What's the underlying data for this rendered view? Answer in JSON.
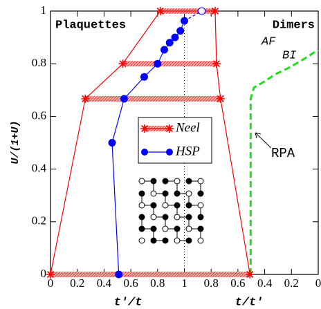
{
  "chart_data": {
    "type": "line",
    "xlim": [
      0,
      2
    ],
    "ylim": [
      0,
      1
    ],
    "xticks": [
      0,
      0.2,
      0.4,
      0.6,
      0.8,
      1,
      {
        "value": 1.2,
        "label": "0.8"
      },
      {
        "value": 1.4,
        "label": "0.6"
      },
      {
        "value": 1.6,
        "label": "0.4"
      },
      {
        "value": 1.8,
        "label": "0.2"
      },
      {
        "value": 2,
        "label": "0"
      }
    ],
    "yticks": [
      0,
      0.2,
      0.4,
      0.6,
      0.8,
      1
    ],
    "xlabel_left": "t′/t",
    "xlabel_right": "t/t′",
    "ylabel": "U/(1+U)",
    "series": [
      {
        "name": "Neel",
        "color": "#ff0000",
        "marker": "star",
        "x": [
          0,
          0.26,
          0.54,
          0.82,
          1.23,
          1.24,
          1.27,
          1.49
        ],
        "values": [
          0,
          0.667,
          0.8,
          1,
          1,
          0.8,
          0.667,
          0
        ]
      },
      {
        "name": "HSP",
        "color": "#0000ff",
        "marker": "circle",
        "x": [
          0.51,
          0.46,
          0.55,
          0.7,
          0.8,
          0.85,
          0.89,
          0.93,
          0.97,
          1.0,
          1.13
        ],
        "values": [
          0,
          0.5,
          0.667,
          0.75,
          0.8,
          0.853,
          0.88,
          0.9,
          0.925,
          0.963,
          1
        ]
      }
    ],
    "boundary": {
      "color": "#22dd22",
      "x": [
        1.495,
        1.495,
        1.52,
        1.58,
        1.68,
        1.79,
        1.9,
        2
      ],
      "values": [
        0,
        0.667,
        0.71,
        0.727,
        0.76,
        0.787,
        0.82,
        0.853
      ]
    },
    "annotations": [
      "Plaquettes",
      "Dimers",
      "AF",
      "BI",
      "RPA"
    ]
  }
}
